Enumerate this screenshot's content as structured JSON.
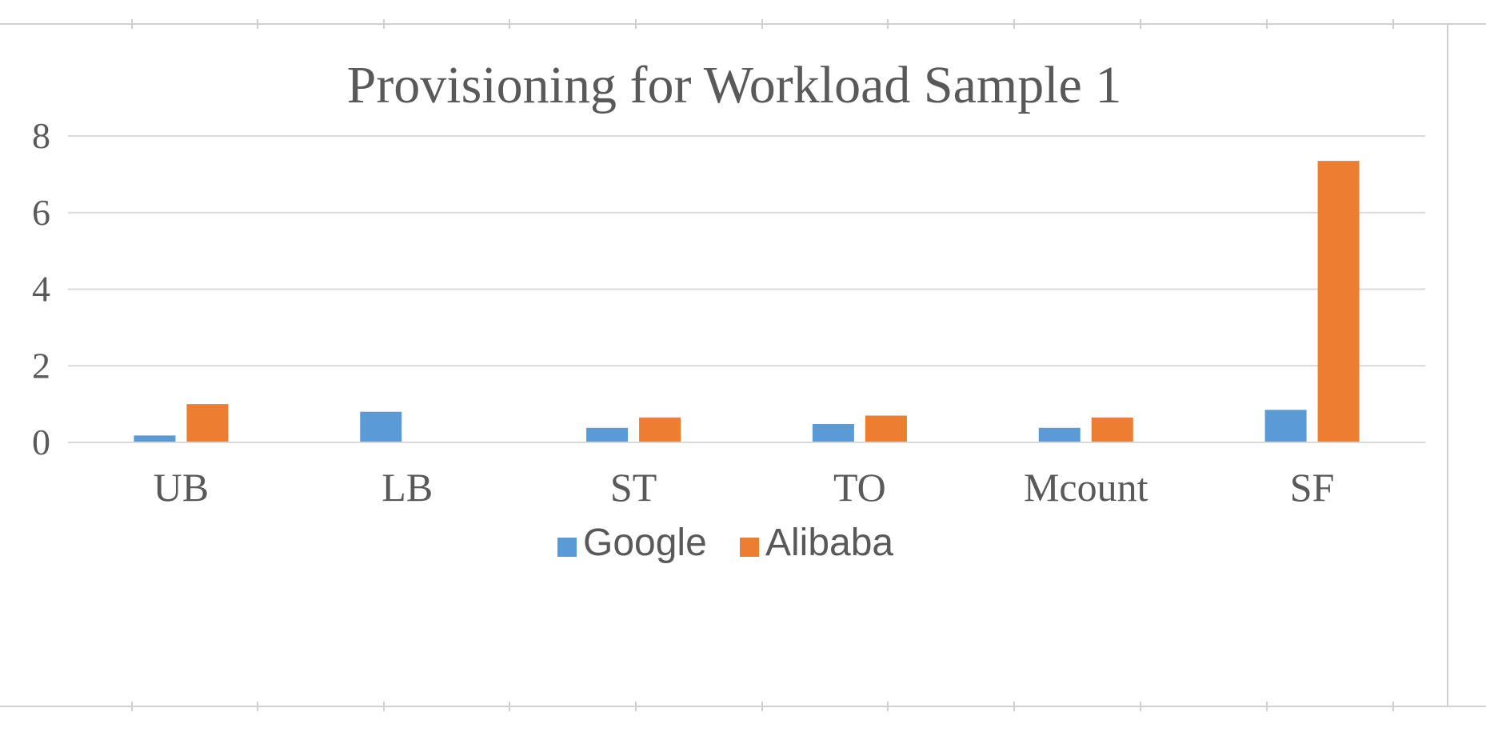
{
  "chart_data": {
    "type": "bar",
    "title": "Provisioning for Workload Sample 1",
    "categories": [
      "UB",
      "LB",
      "ST",
      "TO",
      "Mcount",
      "SF"
    ],
    "series": [
      {
        "name": "Google",
        "color": "#5b9bd5",
        "values": [
          0.18,
          0.8,
          0.38,
          0.48,
          0.38,
          0.85
        ]
      },
      {
        "name": "Alibaba",
        "color": "#ed7d31",
        "values": [
          1.0,
          0,
          0.65,
          0.7,
          0.65,
          7.35
        ]
      }
    ],
    "xlabel": "",
    "ylabel": "",
    "ylim": [
      0,
      8
    ],
    "yticks": [
      0,
      2,
      4,
      6,
      8
    ],
    "grid": true,
    "legend_position": "bottom"
  }
}
